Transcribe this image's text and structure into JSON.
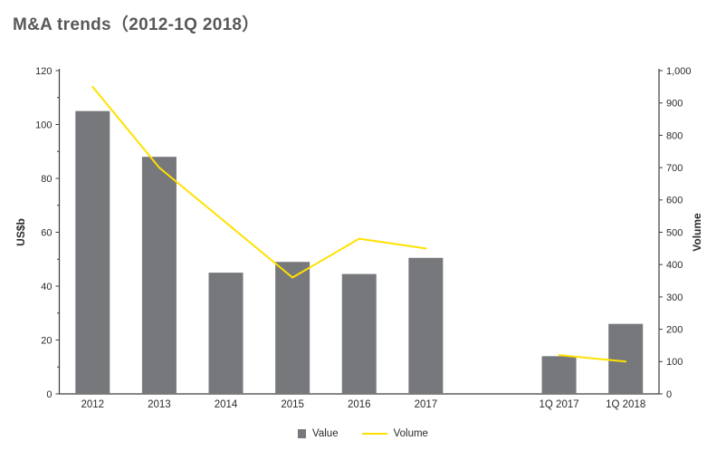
{
  "chart_data": {
    "type": "combo-bar-line",
    "title": "M&A trends（2012-1Q 2018）",
    "categories": [
      "2012",
      "2013",
      "2014",
      "2015",
      "2016",
      "2017",
      "",
      "1Q 2017",
      "1Q 2018"
    ],
    "series": [
      {
        "name": "Value",
        "type": "bar",
        "axis": "left",
        "values": [
          105,
          88,
          45,
          49,
          44.5,
          50.5,
          null,
          14,
          26
        ]
      },
      {
        "name": "Volume",
        "type": "line",
        "axis": "right",
        "values": [
          950,
          700,
          530,
          360,
          480,
          450,
          null,
          120,
          100
        ]
      }
    ],
    "left_axis": {
      "label": "US$b",
      "min": 0,
      "max": 120,
      "step": 20,
      "minor_step": 10
    },
    "right_axis": {
      "label": "Volume",
      "min": 0,
      "max": 1000,
      "step": 100
    },
    "legend_position": "bottom",
    "grid": false
  },
  "colors": {
    "bar": "#77787b",
    "line": "#ffe100",
    "title": "#57585a",
    "axis_line": "#3d3d3d",
    "tick_text": "#2a2a2a"
  }
}
